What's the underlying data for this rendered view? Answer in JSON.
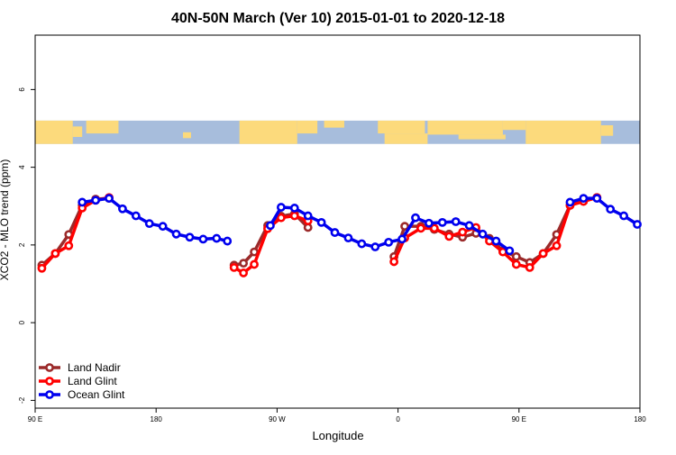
{
  "chart_data": {
    "type": "line",
    "title": "40N-50N March (Ver 10)   2015-01-01 to 2020-12-18",
    "xlabel": "Longitude",
    "ylabel": "XCO2 - MLO trend (ppm)",
    "xlim": [
      90,
      540
    ],
    "ylim": [
      -2.2,
      7.4
    ],
    "x_ticks": [
      {
        "value": 90,
        "label": "90 E"
      },
      {
        "value": 180,
        "label": "180"
      },
      {
        "value": 270,
        "label": "90 W"
      },
      {
        "value": 360,
        "label": "0"
      },
      {
        "value": 450,
        "label": "90 E"
      },
      {
        "value": 540,
        "label": "180"
      }
    ],
    "y_ticks": [
      {
        "value": -2,
        "label": "-2"
      },
      {
        "value": 0,
        "label": "0"
      },
      {
        "value": 2,
        "label": "2"
      },
      {
        "value": 4,
        "label": "4"
      },
      {
        "value": 6,
        "label": "6"
      }
    ],
    "map_band": {
      "y_range": [
        4.6,
        5.2
      ],
      "ocean_color": "#a7bddc",
      "land_color": "#fcda7c"
    },
    "legend": {
      "position": "bottom-left"
    },
    "series": [
      {
        "name": "Land Nadir",
        "color": "#9b2a2a",
        "segments": [
          [
            [
              95,
              1.48
            ],
            [
              105,
              1.78
            ],
            [
              115,
              2.27
            ],
            [
              125,
              3.02
            ],
            [
              135,
              3.18
            ],
            [
              145,
              3.2
            ]
          ],
          [
            [
              238,
              1.48
            ],
            [
              245,
              1.53
            ],
            [
              253,
              1.82
            ],
            [
              263,
              2.5
            ],
            [
              273,
              2.74
            ],
            [
              283,
              2.8
            ],
            [
              293,
              2.45
            ]
          ],
          [
            [
              357,
              1.7
            ],
            [
              365,
              2.48
            ],
            [
              377,
              2.48
            ],
            [
              387,
              2.4
            ],
            [
              398,
              2.28
            ],
            [
              408,
              2.2
            ],
            [
              418,
              2.3
            ],
            [
              428,
              2.17
            ],
            [
              438,
              1.85
            ],
            [
              448,
              1.7
            ],
            [
              458,
              1.55
            ],
            [
              468,
              1.78
            ],
            [
              478,
              2.27
            ],
            [
              488,
              3.02
            ],
            [
              498,
              3.15
            ],
            [
              508,
              3.22
            ]
          ]
        ]
      },
      {
        "name": "Land Glint",
        "color": "#ff0000",
        "segments": [
          [
            [
              95,
              1.4
            ],
            [
              105,
              1.78
            ],
            [
              115,
              1.98
            ],
            [
              125,
              2.95
            ],
            [
              135,
              3.15
            ],
            [
              145,
              3.22
            ]
          ],
          [
            [
              238,
              1.42
            ],
            [
              245,
              1.28
            ],
            [
              253,
              1.5
            ],
            [
              263,
              2.42
            ],
            [
              273,
              2.7
            ],
            [
              283,
              2.75
            ],
            [
              293,
              2.62
            ]
          ],
          [
            [
              357,
              1.57
            ],
            [
              365,
              2.18
            ],
            [
              377,
              2.43
            ],
            [
              387,
              2.43
            ],
            [
              398,
              2.22
            ],
            [
              408,
              2.33
            ],
            [
              418,
              2.45
            ],
            [
              428,
              2.1
            ],
            [
              438,
              1.82
            ],
            [
              448,
              1.5
            ],
            [
              458,
              1.42
            ],
            [
              468,
              1.78
            ],
            [
              478,
              1.98
            ],
            [
              488,
              3.02
            ],
            [
              498,
              3.12
            ],
            [
              508,
              3.22
            ]
          ]
        ]
      },
      {
        "name": "Ocean Glint",
        "color": "#0000ee",
        "segments": [
          [
            [
              125,
              3.1
            ],
            [
              135,
              3.15
            ],
            [
              145,
              3.2
            ],
            [
              155,
              2.93
            ],
            [
              165,
              2.75
            ],
            [
              175,
              2.55
            ],
            [
              185,
              2.48
            ],
            [
              195,
              2.28
            ],
            [
              205,
              2.2
            ],
            [
              215,
              2.15
            ],
            [
              225,
              2.17
            ],
            [
              233,
              2.1
            ]
          ],
          [
            [
              265,
              2.5
            ],
            [
              273,
              2.97
            ],
            [
              283,
              2.95
            ],
            [
              293,
              2.75
            ],
            [
              303,
              2.58
            ],
            [
              313,
              2.32
            ],
            [
              323,
              2.18
            ],
            [
              333,
              2.03
            ],
            [
              343,
              1.95
            ],
            [
              353,
              2.07
            ],
            [
              363,
              2.15
            ],
            [
              373,
              2.7
            ],
            [
              383,
              2.56
            ],
            [
              393,
              2.58
            ],
            [
              403,
              2.6
            ],
            [
              413,
              2.5
            ],
            [
              423,
              2.28
            ],
            [
              433,
              2.1
            ],
            [
              443,
              1.85
            ]
          ],
          [
            [
              488,
              3.1
            ],
            [
              498,
              3.2
            ],
            [
              508,
              3.2
            ],
            [
              518,
              2.92
            ],
            [
              528,
              2.75
            ],
            [
              538,
              2.53
            ]
          ]
        ]
      }
    ]
  }
}
